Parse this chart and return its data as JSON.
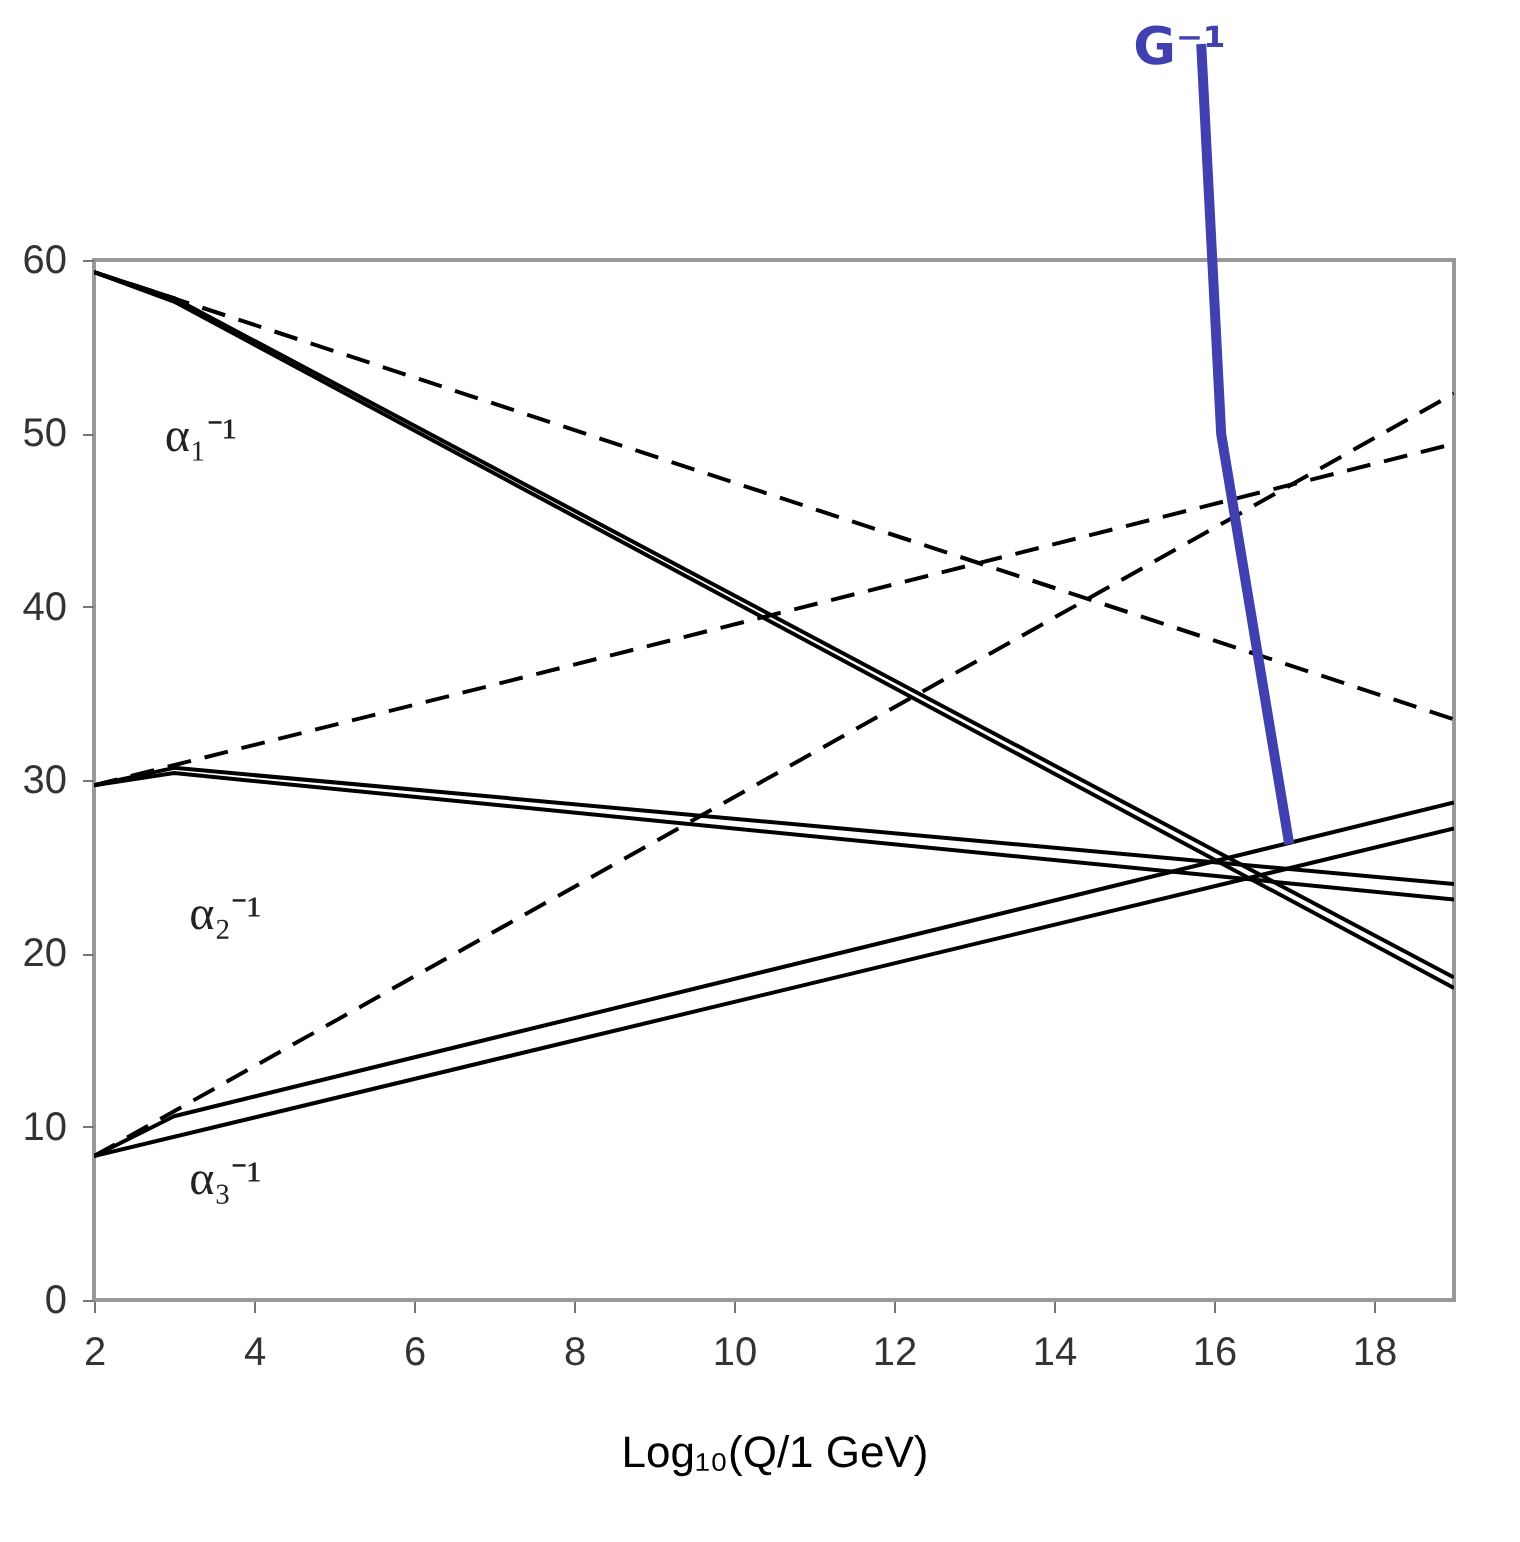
{
  "chart_data": {
    "type": "line",
    "xlabel": "Log₁₀(Q/1 GeV)",
    "xlim": [
      2,
      19
    ],
    "xticks": [
      2,
      4,
      6,
      8,
      10,
      12,
      14,
      16,
      18
    ],
    "ylim": [
      0,
      60
    ],
    "yticks": [
      0,
      10,
      20,
      30,
      40,
      50,
      60
    ],
    "grid": false,
    "marker": "none",
    "series": [
      {
        "color": "#000000",
        "line_style": "dashed",
        "x": [
          2,
          19
        ],
        "values": [
          59.3,
          33.5
        ]
      },
      {
        "color": "#000000",
        "line_style": "dashed",
        "x": [
          2,
          19
        ],
        "values": [
          29.7,
          49.4
        ]
      },
      {
        "color": "#000000",
        "line_style": "dashed",
        "x": [
          2,
          19
        ],
        "values": [
          8.3,
          52.3
        ]
      },
      {
        "color": "#000000",
        "line_style": "solid",
        "x": [
          2,
          3,
          19
        ],
        "values": [
          59.3,
          57.8,
          18.6
        ]
      },
      {
        "color": "#000000",
        "line_style": "solid",
        "x": [
          2,
          3,
          19
        ],
        "values": [
          59.3,
          57.6,
          18.0
        ]
      },
      {
        "color": "#000000",
        "line_style": "solid",
        "x": [
          2,
          3,
          19
        ],
        "values": [
          29.7,
          30.7,
          24.0
        ]
      },
      {
        "color": "#000000",
        "line_style": "solid",
        "x": [
          2,
          3,
          19
        ],
        "values": [
          29.7,
          30.4,
          23.1
        ]
      },
      {
        "color": "#000000",
        "line_style": "solid",
        "x": [
          2,
          3,
          19
        ],
        "values": [
          8.3,
          10.6,
          28.7
        ]
      },
      {
        "color": "#000000",
        "line_style": "solid",
        "x": [
          2,
          19
        ],
        "values": [
          8.3,
          27.2
        ]
      }
    ],
    "annotations": [
      "α₁⁻¹",
      "α₂⁻¹",
      "α₃⁻¹",
      {
        "text": "G⁻¹",
        "x": 16.94,
        "y": 26.3
      }
    ]
  }
}
